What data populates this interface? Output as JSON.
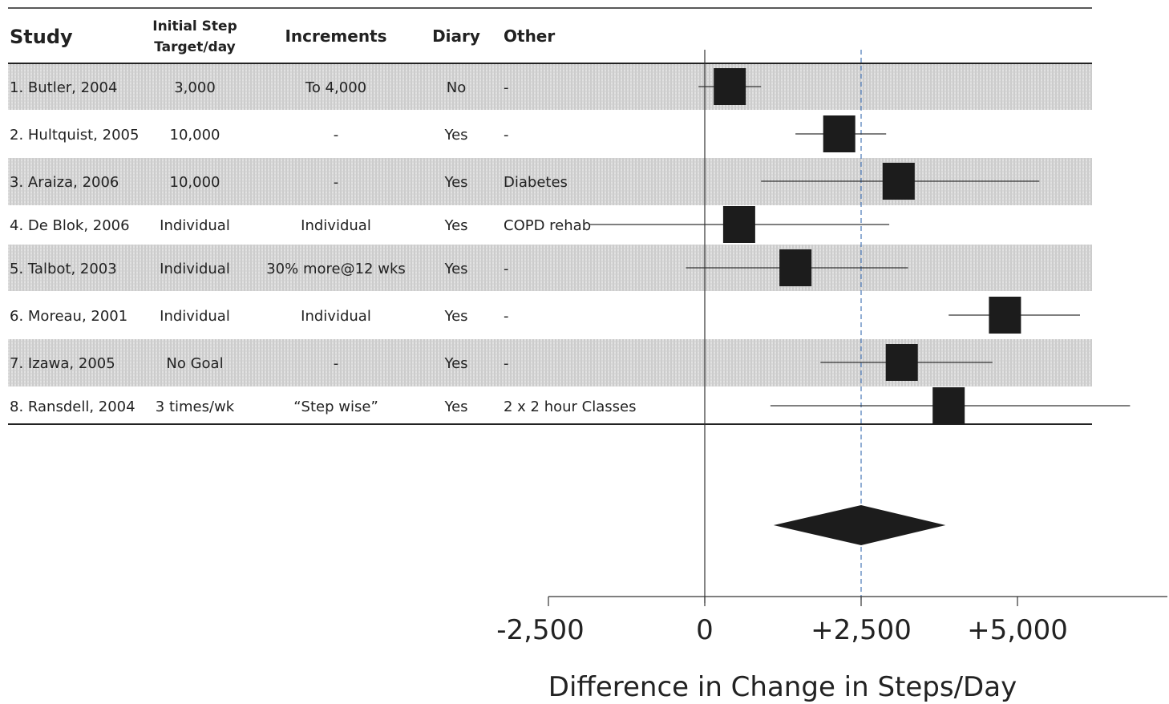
{
  "chart_data": {
    "type": "forest",
    "title": "",
    "xlabel": "Difference in Change in Steps/Day",
    "xlim": [
      -2500,
      5000
    ],
    "x_ticks": [
      -2500,
      0,
      2500,
      5000
    ],
    "x_tick_labels": [
      "-2,500",
      "0",
      "+2,500",
      "+5,000"
    ],
    "reference_line": 0,
    "pooled_line": 2500,
    "columns": [
      {
        "key": "study",
        "label": "Study"
      },
      {
        "key": "target_line1",
        "label": "Initial Step"
      },
      {
        "key": "target_line2",
        "label": "Target/day"
      },
      {
        "key": "increments",
        "label": "Increments"
      },
      {
        "key": "diary",
        "label": "Diary"
      },
      {
        "key": "other",
        "label": "Other"
      }
    ],
    "studies": [
      {
        "study": "1. Butler, 2004",
        "target": "3,000",
        "increments": "To 4,000",
        "diary": "No",
        "other": "-",
        "estimate": 400,
        "ci": [
          -100,
          900
        ],
        "shaded": true
      },
      {
        "study": "2. Hultquist, 2005",
        "target": "10,000",
        "increments": "-",
        "diary": "Yes",
        "other": "-",
        "estimate": 2150,
        "ci": [
          1450,
          2900
        ],
        "shaded": false
      },
      {
        "study": "3. Araiza, 2006",
        "target": "10,000",
        "increments": "-",
        "diary": "Yes",
        "other": "Diabetes",
        "estimate": 3100,
        "ci": [
          900,
          5350
        ],
        "shaded": true
      },
      {
        "study": "4. De Blok, 2006",
        "target": "Individual",
        "increments": "Individual",
        "diary": "Yes",
        "other": "COPD rehab",
        "estimate": 550,
        "ci": [
          -1850,
          2950
        ],
        "shaded": false
      },
      {
        "study": "5. Talbot, 2003",
        "target": "Individual",
        "increments": "30% more@12 wks",
        "diary": "Yes",
        "other": "-",
        "estimate": 1450,
        "ci": [
          -300,
          3250
        ],
        "shaded": true
      },
      {
        "study": "6. Moreau, 2001",
        "target": "Individual",
        "increments": "Individual",
        "diary": "Yes",
        "other": "-",
        "estimate": 4800,
        "ci": [
          3900,
          6000
        ],
        "shaded": false
      },
      {
        "study": "7. Izawa, 2005",
        "target": "No Goal",
        "increments": "-",
        "diary": "Yes",
        "other": "-",
        "estimate": 3150,
        "ci": [
          1850,
          4600
        ],
        "shaded": true
      },
      {
        "study": "8. Ransdell, 2004",
        "target": "3 times/wk",
        "increments": "“Step wise”",
        "diary": "Yes",
        "other": "2 x 2 hour Classes",
        "estimate": 3900,
        "ci": [
          1050,
          6800
        ],
        "shaded": false
      }
    ],
    "pooled": {
      "estimate": 2500,
      "ci": [
        1100,
        3850
      ]
    }
  }
}
